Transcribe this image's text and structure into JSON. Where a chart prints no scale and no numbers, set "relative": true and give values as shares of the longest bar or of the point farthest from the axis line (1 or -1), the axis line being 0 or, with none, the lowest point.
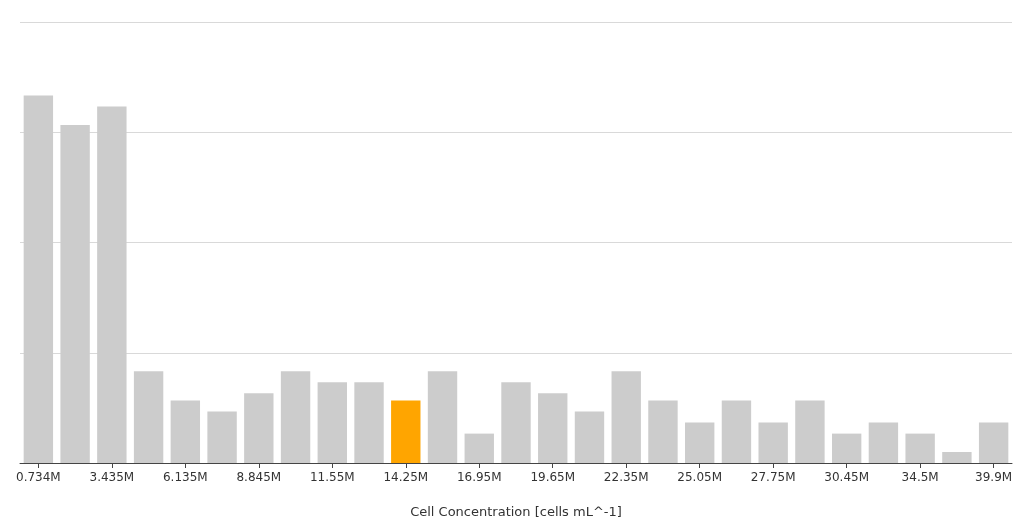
{
  "chart_data": {
    "type": "bar",
    "xlabel": "Cell Concentration [cells mL^-1]",
    "relative": true,
    "grid": "y",
    "categories": [
      "0.734M",
      null,
      "3.435M",
      null,
      "6.135M",
      null,
      "8.845M",
      null,
      "11.55M",
      null,
      "14.25M",
      null,
      "16.95M",
      null,
      "19.65M",
      null,
      "22.35M",
      null,
      "25.05M",
      null,
      "27.75M",
      null,
      "30.45M",
      null,
      "34.5M",
      null,
      "39.9M"
    ],
    "values": [
      1,
      0.92,
      0.97,
      0.25,
      0.17,
      0.14,
      0.19,
      0.25,
      0.22,
      0.22,
      0.17,
      0.25,
      0.08,
      0.22,
      0.19,
      0.14,
      0.25,
      0.17,
      0.11,
      0.17,
      0.11,
      0.17,
      0.08,
      0.11,
      0.08,
      0.03,
      0.11
    ],
    "colors": [
      "#cccccc",
      "#cccccc",
      "#cccccc",
      "#cccccc",
      "#cccccc",
      "#cccccc",
      "#cccccc",
      "#cccccc",
      "#cccccc",
      "#cccccc",
      "#ffa500",
      "#cccccc",
      "#cccccc",
      "#cccccc",
      "#cccccc",
      "#cccccc",
      "#cccccc",
      "#cccccc",
      "#cccccc",
      "#cccccc",
      "#cccccc",
      "#cccccc",
      "#cccccc",
      "#cccccc",
      "#cccccc",
      "#cccccc",
      "#cccccc"
    ]
  }
}
